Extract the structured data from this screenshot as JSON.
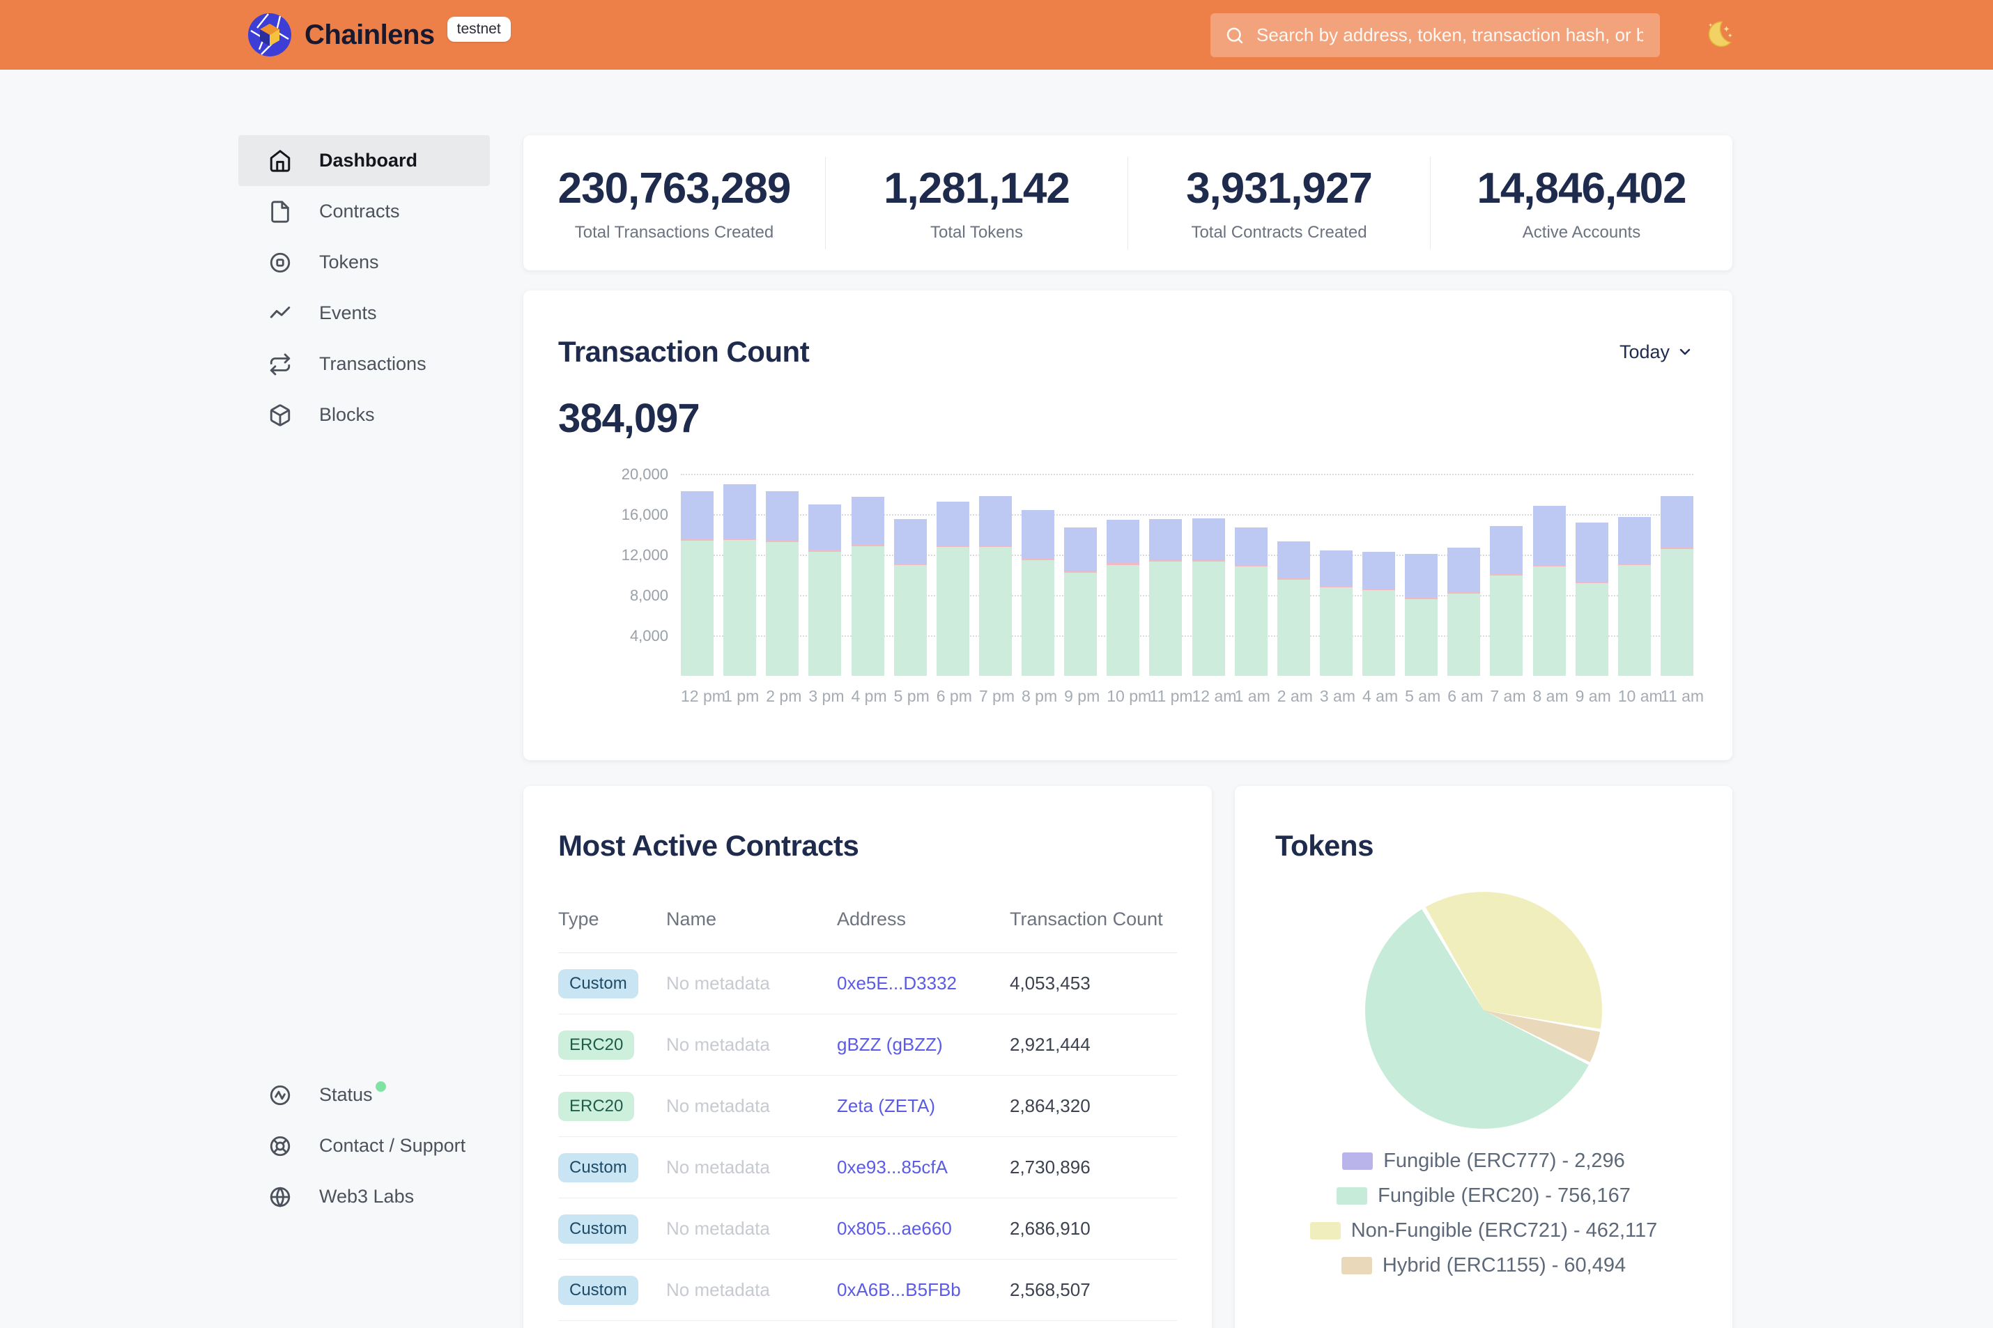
{
  "header": {
    "brand": "Chainlens",
    "badge": "testnet",
    "search_placeholder": "Search by address, token, transaction hash, or block number"
  },
  "sidebar": {
    "items": [
      {
        "label": "Dashboard",
        "active": true
      },
      {
        "label": "Contracts",
        "active": false
      },
      {
        "label": "Tokens",
        "active": false
      },
      {
        "label": "Events",
        "active": false
      },
      {
        "label": "Transactions",
        "active": false
      },
      {
        "label": "Blocks",
        "active": false
      }
    ],
    "footer_items": [
      {
        "label": "Status"
      },
      {
        "label": "Contact / Support"
      },
      {
        "label": "Web3 Labs"
      }
    ]
  },
  "stats": [
    {
      "value": "230,763,289",
      "label": "Total Transactions Created"
    },
    {
      "value": "1,281,142",
      "label": "Total Tokens"
    },
    {
      "value": "3,931,927",
      "label": "Total Contracts Created"
    },
    {
      "value": "14,846,402",
      "label": "Active Accounts"
    }
  ],
  "transaction_count": {
    "title": "Transaction Count",
    "range_label": "Today",
    "total": "384,097",
    "chart_data": {
      "type": "bar",
      "stacked": true,
      "ylim": [
        0,
        20000
      ],
      "grid": true,
      "y_ticks": [
        {
          "value": 4000,
          "label": "4,000"
        },
        {
          "value": 8000,
          "label": "8,000"
        },
        {
          "value": 12000,
          "label": "12,000"
        },
        {
          "value": 16000,
          "label": "16,000"
        },
        {
          "value": 20000,
          "label": "20,000"
        }
      ],
      "categories": [
        "12 pm",
        "1 pm",
        "2 pm",
        "3 pm",
        "4 pm",
        "5 pm",
        "6 pm",
        "7 pm",
        "8 pm",
        "9 pm",
        "10 pm",
        "11 pm",
        "12 am",
        "1 am",
        "2 am",
        "3 am",
        "4 am",
        "5 am",
        "6 am",
        "7 am",
        "8 am",
        "9 am",
        "10 am",
        "11 am"
      ],
      "series": [
        {
          "name": "segment-green",
          "color": "#cdecdb",
          "values": [
            13400,
            13450,
            13250,
            12300,
            12850,
            10950,
            12750,
            12750,
            11450,
            10200,
            11000,
            11300,
            11300,
            10850,
            9500,
            8750,
            8450,
            7600,
            8150,
            9900,
            10800,
            9150,
            10950,
            12550
          ]
        },
        {
          "name": "segment-pink",
          "color": "#f3b9c1",
          "values": [
            150,
            150,
            150,
            150,
            150,
            150,
            150,
            150,
            150,
            150,
            150,
            150,
            150,
            150,
            150,
            150,
            150,
            150,
            150,
            150,
            150,
            150,
            150,
            150
          ]
        },
        {
          "name": "segment-blue",
          "color": "#bdc9f3",
          "values": [
            4700,
            5350,
            4900,
            4550,
            4700,
            4400,
            4350,
            4900,
            4800,
            4350,
            4300,
            4100,
            4150,
            3700,
            3650,
            3500,
            3700,
            4350,
            4400,
            4800,
            5850,
            5850,
            4600,
            5100
          ]
        }
      ]
    }
  },
  "contracts_table": {
    "title": "Most Active Contracts",
    "columns": [
      "Type",
      "Name",
      "Address",
      "Transaction Count"
    ],
    "no_metadata_text": "No metadata",
    "rows": [
      {
        "type": "Custom",
        "badge_color": "blue",
        "name": "No metadata",
        "address": "0xe5E...D3332",
        "count": "4,053,453"
      },
      {
        "type": "ERC20",
        "badge_color": "green",
        "name": "No metadata",
        "address": "gBZZ (gBZZ)",
        "count": "2,921,444"
      },
      {
        "type": "ERC20",
        "badge_color": "green",
        "name": "No metadata",
        "address": "Zeta (ZETA)",
        "count": "2,864,320"
      },
      {
        "type": "Custom",
        "badge_color": "blue",
        "name": "No metadata",
        "address": "0xe93...85cfA",
        "count": "2,730,896"
      },
      {
        "type": "Custom",
        "badge_color": "blue",
        "name": "No metadata",
        "address": "0x805...ae660",
        "count": "2,686,910"
      },
      {
        "type": "Custom",
        "badge_color": "blue",
        "name": "No metadata",
        "address": "0xA6B...B5FBb",
        "count": "2,568,507"
      }
    ]
  },
  "tokens": {
    "title": "Tokens",
    "chart_data": {
      "type": "pie",
      "start_angle_deg": -30,
      "slices": [
        {
          "name": "Fungible (ERC777)",
          "value": 2296,
          "color": "#b9b5ea"
        },
        {
          "name": "Non-Fungible (ERC721)",
          "value": 462117,
          "color": "#f1eebd"
        },
        {
          "name": "Hybrid (ERC1155)",
          "value": 60494,
          "color": "#e9d8ba"
        },
        {
          "name": "Fungible (ERC20)",
          "value": 756167,
          "color": "#c6ecd9"
        }
      ]
    },
    "legend": [
      {
        "label": "Fungible (ERC777) - 2,296",
        "color": "#b9b5ea"
      },
      {
        "label": "Fungible (ERC20) - 756,167",
        "color": "#c6ecd9"
      },
      {
        "label": "Non-Fungible (ERC721) - 462,117",
        "color": "#f1eebd"
      },
      {
        "label": "Hybrid (ERC1155) - 60,494",
        "color": "#e9d8ba"
      }
    ]
  }
}
